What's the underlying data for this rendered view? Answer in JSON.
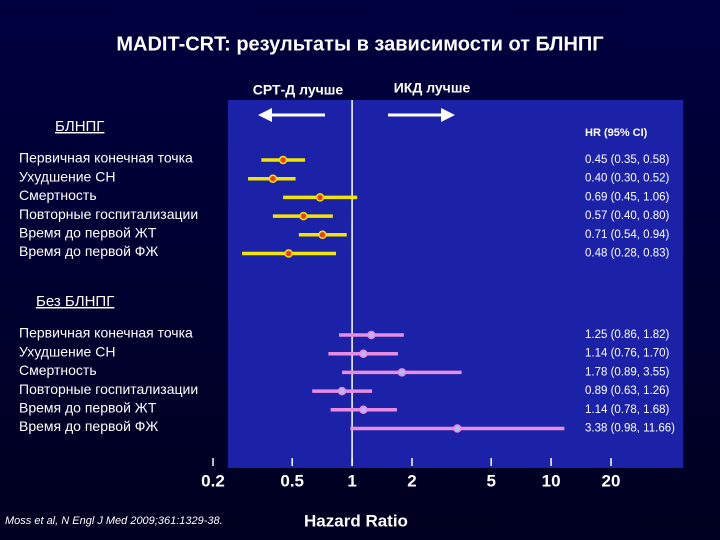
{
  "chart_data": {
    "type": "forest",
    "title": "MADIT-CRT: результаты в зависимости от БЛНПГ",
    "annotations": [
      "СРТ-Д лучше",
      "ИКД лучше"
    ],
    "ci_header": "HR (95% CI)",
    "xlabel": "Hazard Ratio",
    "source": "Moss et al, N Engl J Med 2009;361:1329-38.",
    "xscale": "log",
    "xlim": [
      0.2,
      46
    ],
    "xticks": [
      0.2,
      0.5,
      1,
      2,
      5,
      10,
      20
    ],
    "reference": 1,
    "categories": [
      "Первичная конечная точка",
      "Ухудшение СН",
      "Смертность",
      "Повторные госпитализации",
      "Время до первой ЖТ",
      "Время до первой ФЖ"
    ],
    "series": [
      {
        "name": "БЛНПГ",
        "color": "#f2e600",
        "point_color": "#e8401c",
        "values": [
          0.45,
          0.4,
          0.69,
          0.57,
          0.71,
          0.48
        ],
        "lower": [
          0.35,
          0.3,
          0.45,
          0.4,
          0.54,
          0.28
        ],
        "upper": [
          0.58,
          0.52,
          1.06,
          0.8,
          0.94,
          0.83
        ],
        "value_labels": [
          "0.45 (0.35, 0.58)",
          "0.40 (0.30, 0.52)",
          "0.69 (0.45, 1.06)",
          "0.57 (0.40, 0.80)",
          "0.71 (0.54, 0.94)",
          "0.48 (0.28, 0.83)"
        ]
      },
      {
        "name": "Без БЛНПГ",
        "color": "#e98be0",
        "point_color": "#b8b8f0",
        "values": [
          1.25,
          1.14,
          1.78,
          0.89,
          1.14,
          3.38
        ],
        "lower": [
          0.86,
          0.76,
          0.89,
          0.63,
          0.78,
          0.98
        ],
        "upper": [
          1.82,
          1.7,
          3.55,
          1.26,
          1.68,
          11.66
        ],
        "value_labels": [
          "1.25 (0.86, 1.82)",
          "1.14 (0.76, 1.70)",
          "1.78 (0.89, 3.55)",
          "0.89 (0.63, 1.26)",
          "1.14 (0.78, 1.68)",
          "3.38 (0.98, 11.66)"
        ]
      }
    ]
  }
}
